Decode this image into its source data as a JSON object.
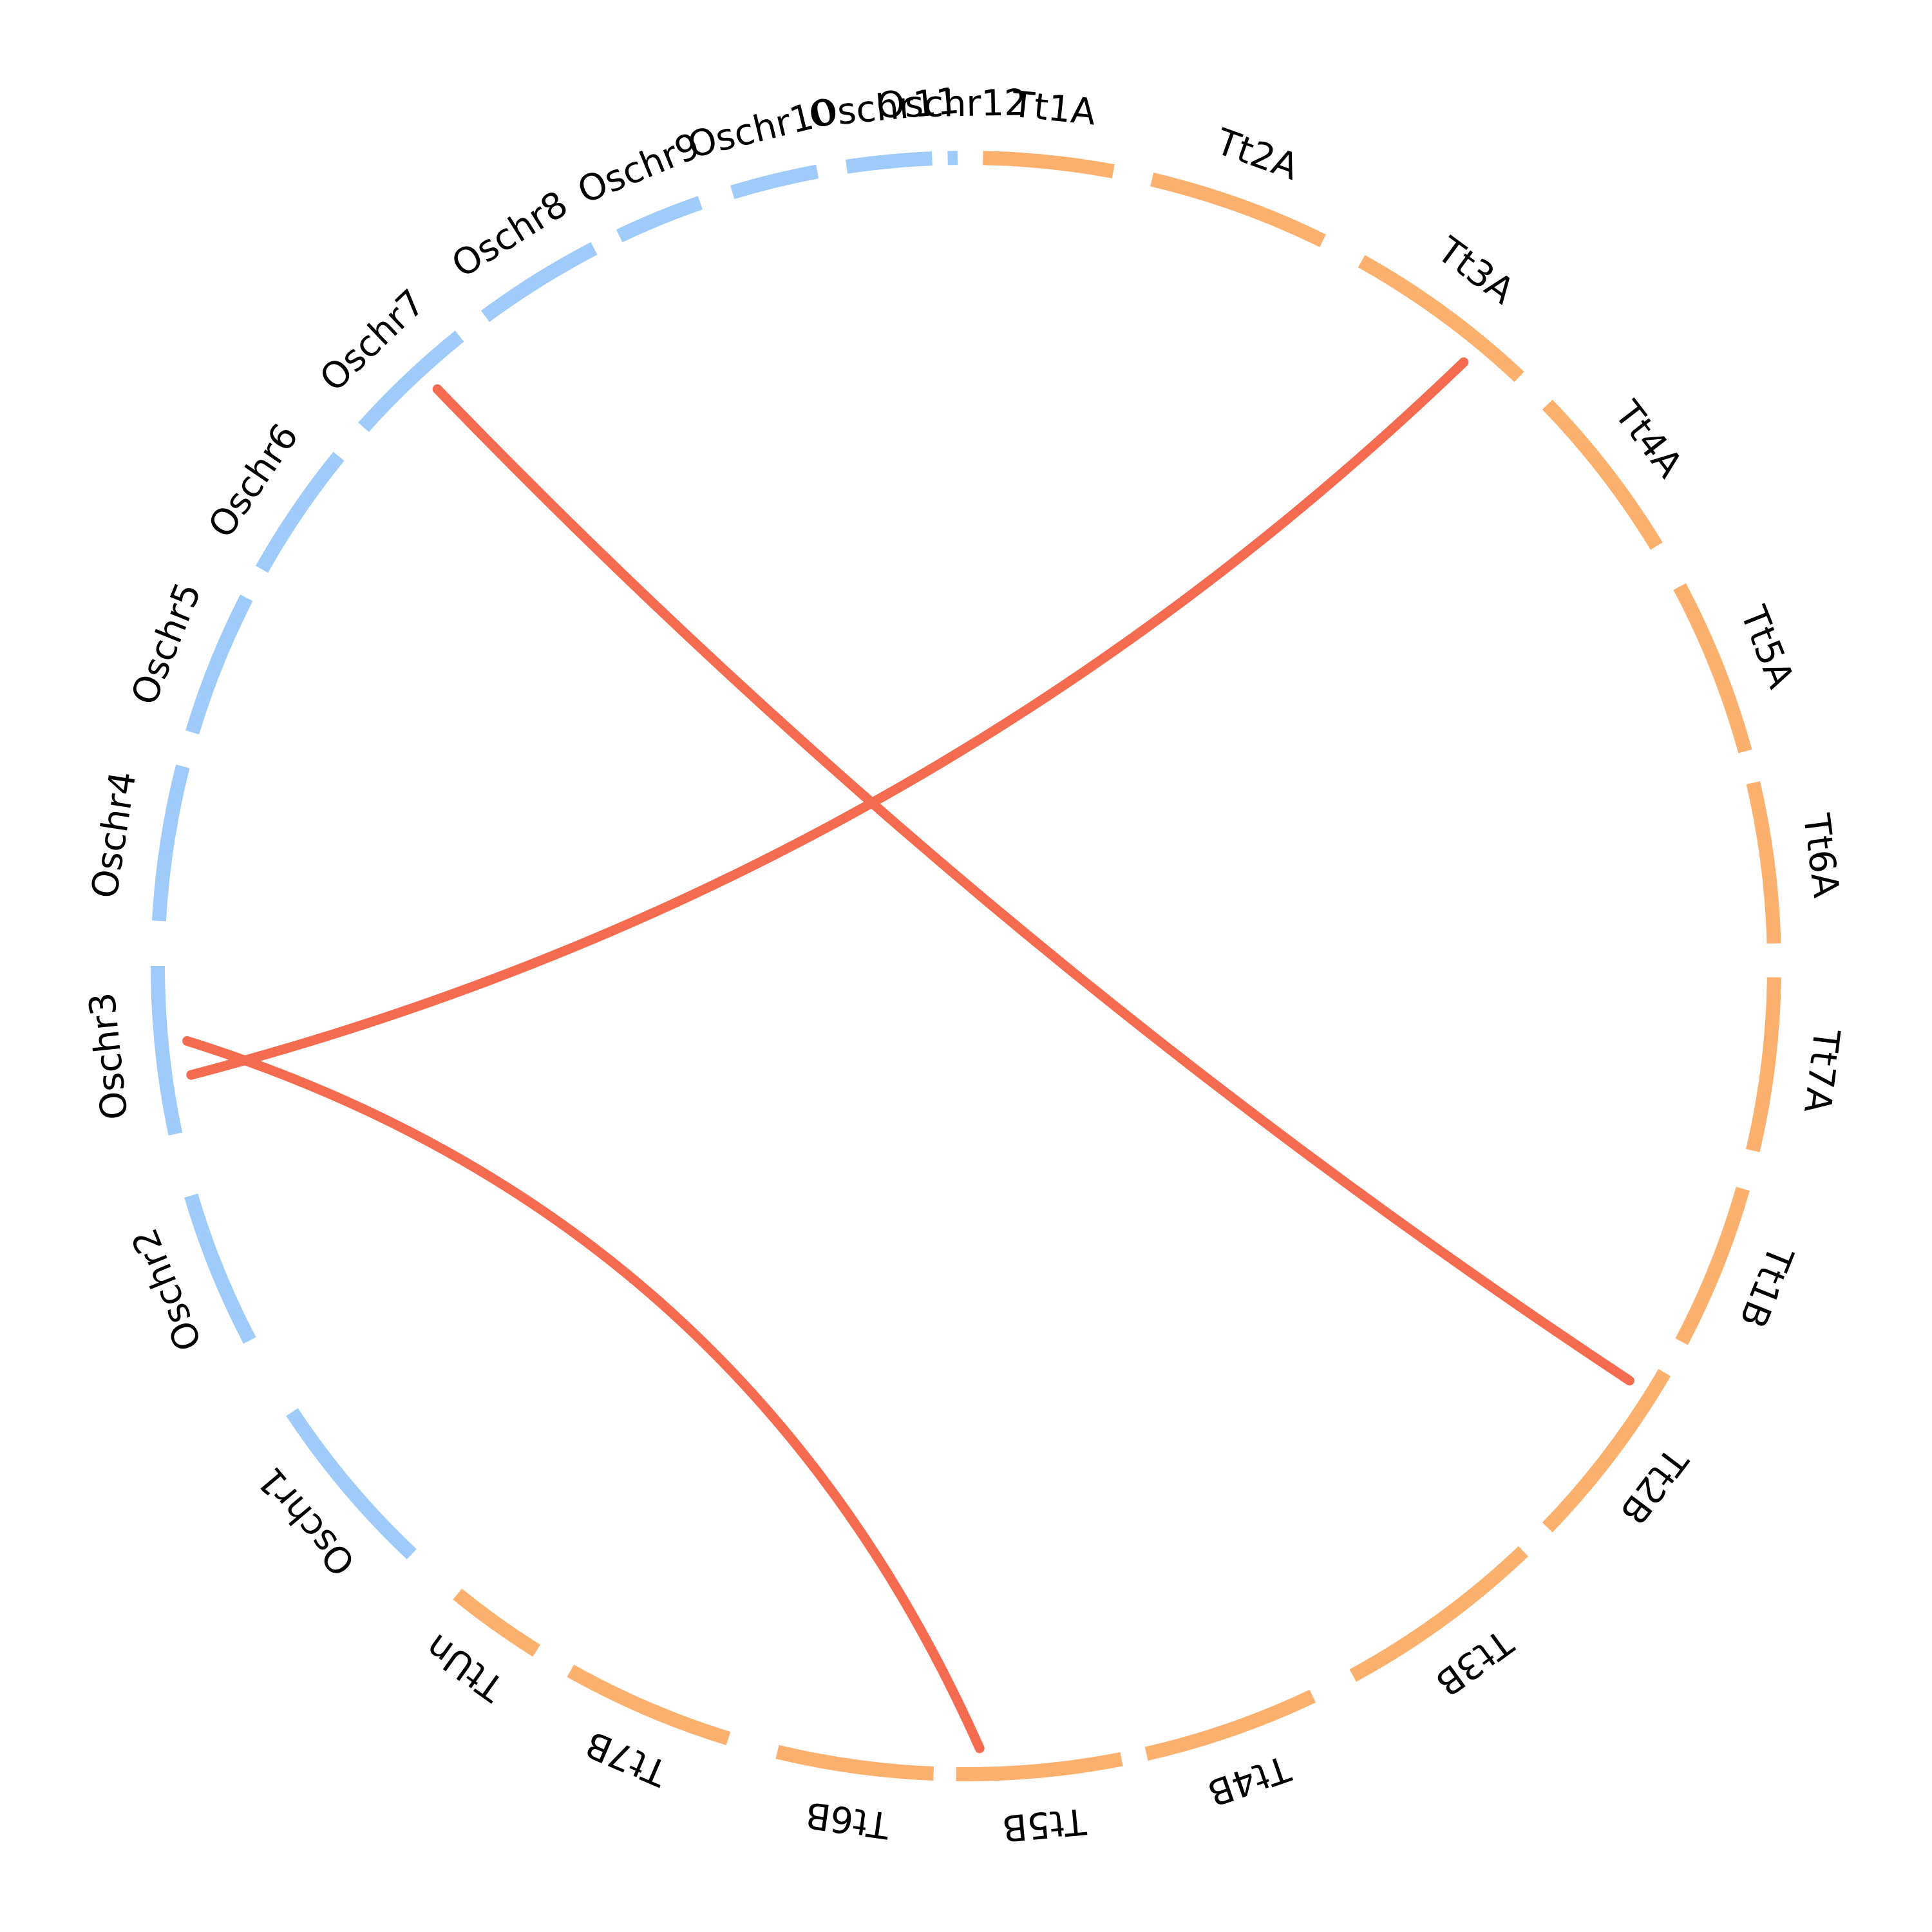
{
  "diagram": {
    "type": "circos-synteny",
    "colors": {
      "rice_arc": "#9ecbfa",
      "wheat_arc": "#fcb06e",
      "link": "#f56b50"
    },
    "chromosomes": [
      {
        "id": "Oschr1",
        "label": "Oschr1",
        "group": "rice",
        "start_deg": 223.3,
        "end_deg": 236.5
      },
      {
        "id": "Oschr2",
        "label": "Oschr2",
        "group": "rice",
        "start_deg": 242.4,
        "end_deg": 253.5
      },
      {
        "id": "Oschr3",
        "label": "Oschr3",
        "group": "rice",
        "start_deg": 258.0,
        "end_deg": 270.0
      },
      {
        "id": "Oschr4",
        "label": "Oschr4",
        "group": "rice",
        "start_deg": 273.2,
        "end_deg": 284.3
      },
      {
        "id": "Oschr5",
        "label": "Oschr5",
        "group": "rice",
        "start_deg": 286.8,
        "end_deg": 297.1
      },
      {
        "id": "Oschr6",
        "label": "Oschr6",
        "group": "rice",
        "start_deg": 299.4,
        "end_deg": 309.1
      },
      {
        "id": "Oschr7",
        "label": "Oschr7",
        "group": "rice",
        "start_deg": 311.8,
        "end_deg": 321.2
      },
      {
        "id": "Oschr8",
        "label": "Oschr8",
        "group": "rice",
        "start_deg": 323.5,
        "end_deg": 332.6
      },
      {
        "id": "Oschr9",
        "label": "Oschr9",
        "group": "rice",
        "start_deg": 334.6,
        "end_deg": 340.8
      },
      {
        "id": "Oschr10",
        "label": "Oschr10",
        "group": "rice",
        "start_deg": 343.2,
        "end_deg": 349.4
      },
      {
        "id": "Oschr11",
        "label": "Oschr11",
        "group": "rice",
        "start_deg": 351.5,
        "end_deg": 357.6
      },
      {
        "id": "Oschr12",
        "label": "Oschr12",
        "group": "rice",
        "start_deg": 358.7,
        "end_deg": 359.4
      },
      {
        "id": "Tt1A",
        "label": "Tt1A",
        "group": "wheat",
        "start_deg": 1.2,
        "end_deg": 10.5
      },
      {
        "id": "Tt2A",
        "label": "Tt2A",
        "group": "wheat",
        "start_deg": 13.3,
        "end_deg": 26.2
      },
      {
        "id": "Tt3A",
        "label": "Tt3A",
        "group": "wheat",
        "start_deg": 29.3,
        "end_deg": 43.2
      },
      {
        "id": "Tt4A",
        "label": "Tt4A",
        "group": "wheat",
        "start_deg": 46.0,
        "end_deg": 58.7
      },
      {
        "id": "Tt5A",
        "label": "Tt5A",
        "group": "wheat",
        "start_deg": 62.0,
        "end_deg": 74.6
      },
      {
        "id": "Tt6A",
        "label": "Tt6A",
        "group": "wheat",
        "start_deg": 76.9,
        "end_deg": 88.4
      },
      {
        "id": "Tt7A",
        "label": "Tt7A",
        "group": "wheat",
        "start_deg": 90.8,
        "end_deg": 103.2
      },
      {
        "id": "Tt1B",
        "label": "Tt1B",
        "group": "wheat",
        "start_deg": 106.0,
        "end_deg": 117.7
      },
      {
        "id": "Tt2B",
        "label": "Tt2B",
        "group": "wheat",
        "start_deg": 120.2,
        "end_deg": 134.0
      },
      {
        "id": "Tt3B",
        "label": "Tt3B",
        "group": "wheat",
        "start_deg": 136.4,
        "end_deg": 151.4
      },
      {
        "id": "Tt4B",
        "label": "Tt4B",
        "group": "wheat",
        "start_deg": 154.6,
        "end_deg": 167.1
      },
      {
        "id": "Tt5B",
        "label": "Tt5B",
        "group": "wheat",
        "start_deg": 168.9,
        "end_deg": 180.7
      },
      {
        "id": "Tt6B",
        "label": "Tt6B",
        "group": "wheat",
        "start_deg": 182.3,
        "end_deg": 193.5
      },
      {
        "id": "Tt7B",
        "label": "Tt7B",
        "group": "wheat",
        "start_deg": 197.1,
        "end_deg": 209.3
      },
      {
        "id": "TtUn",
        "label": "TtUn",
        "group": "wheat",
        "start_deg": 212.1,
        "end_deg": 219.0
      }
    ],
    "links": [
      {
        "from": "Oschr7",
        "from_deg": 317.5,
        "to": "Tt2B",
        "to_deg": 122.0
      },
      {
        "from": "Oschr3",
        "from_deg": 262.0,
        "to": "Tt3A",
        "to_deg": 39.5
      },
      {
        "from": "Oschr3",
        "from_deg": 264.5,
        "to": "Tt5B",
        "to_deg": 179.0
      }
    ]
  }
}
